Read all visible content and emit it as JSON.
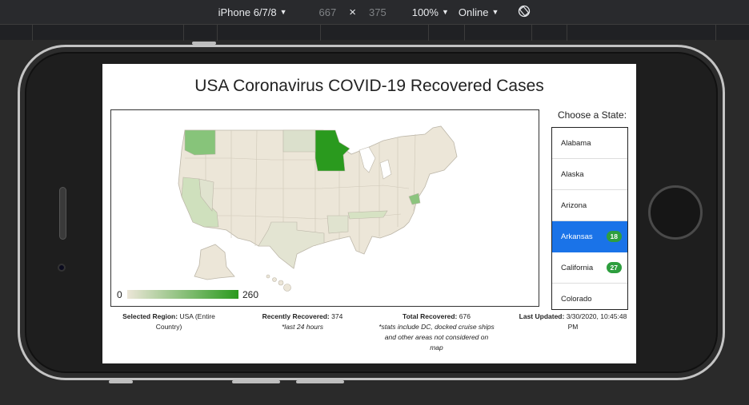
{
  "devtools": {
    "device": "iPhone 6/7/8",
    "width": "667",
    "times": "×",
    "height": "375",
    "zoom": "100%",
    "network": "Online",
    "caret": "▼",
    "rotate_icon": "rotate-icon"
  },
  "page": {
    "title": "USA Coronavirus COVID-19 Recovered Cases"
  },
  "map": {
    "legend_min": "0",
    "legend_max": "260",
    "color_low": "#ece6d8",
    "color_high": "#2a9a1e",
    "highlighted": [
      {
        "state": "Minnesota",
        "color": "#2a9a1e"
      },
      {
        "state": "Washington",
        "color": "#87c47a"
      },
      {
        "state": "California",
        "color": "#cfe0bd"
      },
      {
        "state": "Tennessee",
        "color": "#d6e2c3"
      }
    ]
  },
  "sidebar": {
    "label": "Choose a State:",
    "states": [
      {
        "name": "Alabama",
        "count": ""
      },
      {
        "name": "Alaska",
        "count": ""
      },
      {
        "name": "Arizona",
        "count": ""
      },
      {
        "name": "Arkansas",
        "count": "18",
        "active": true
      },
      {
        "name": "California",
        "count": "27"
      },
      {
        "name": "Colorado",
        "count": ""
      }
    ]
  },
  "footer": {
    "region_label": "Selected Region:",
    "region_value": "USA (Entire Country)",
    "recent_label": "Recently Recovered:",
    "recent_value": "374",
    "recent_note": "*last 24 hours",
    "total_label": "Total Recovered:",
    "total_value": "676",
    "total_note": "*stats include DC, docked cruise ships and other areas not considered on map",
    "updated_label": "Last Updated:",
    "updated_value": "3/30/2020, 10:45:48 PM"
  }
}
